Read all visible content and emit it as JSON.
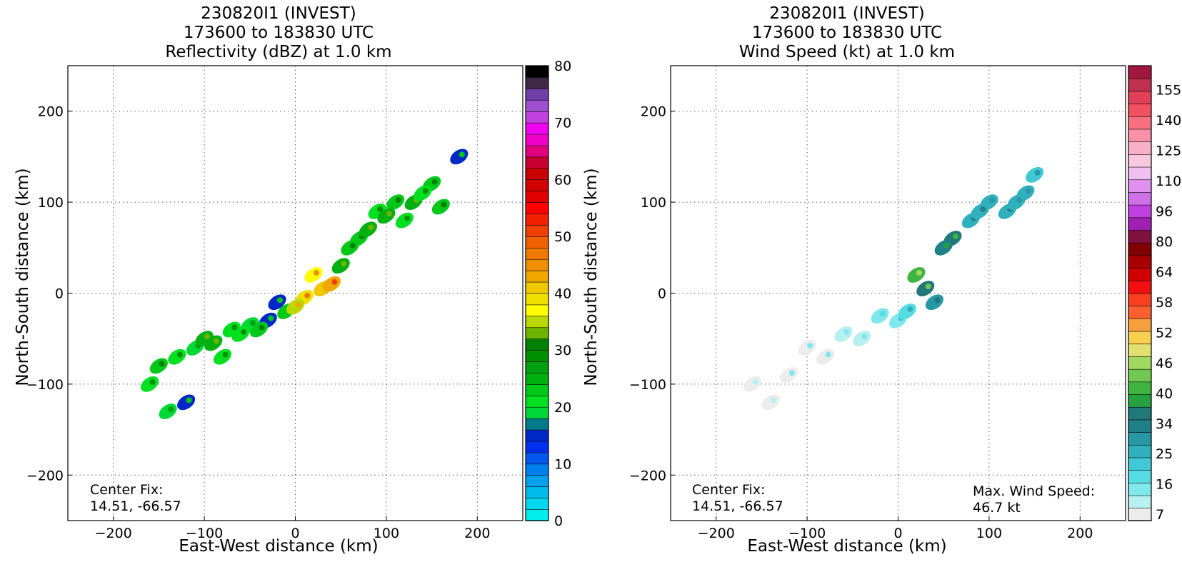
{
  "panels": [
    {
      "title_lines": [
        "230820I1 (INVEST)",
        "173600 to 183830 UTC",
        "Reflectivity (dBZ) at 1.0 km"
      ],
      "center_fix_label": "Center Fix:",
      "center_fix_coords": "14.51, -66.57",
      "note_lines": []
    },
    {
      "title_lines": [
        "230820I1 (INVEST)",
        "173600 to 183830 UTC",
        "Wind Speed (kt) at 1.0 km"
      ],
      "center_fix_label": "Center Fix:",
      "center_fix_coords": "14.51, -66.57",
      "note_lines": [
        "Max. Wind Speed:",
        "46.7 kt"
      ]
    }
  ],
  "chart_data": [
    {
      "type": "heatmap",
      "title": "230820I1 (INVEST) 173600 to 183830 UTC Reflectivity (dBZ) at 1.0 km",
      "xlabel": "East-West distance (km)",
      "ylabel": "North-South distance (km)",
      "xlim": [
        -250,
        250
      ],
      "ylim": [
        -250,
        250
      ],
      "xticks": [
        -200,
        -100,
        0,
        100,
        200
      ],
      "yticks": [
        -200,
        -100,
        0,
        100,
        200
      ],
      "grid": true,
      "colorbar": {
        "label_values": [
          0,
          10,
          20,
          30,
          40,
          50,
          60,
          70,
          80
        ],
        "range": [
          0,
          80
        ],
        "colors": [
          "#00eeee",
          "#00d8ee",
          "#00bcee",
          "#00a0ee",
          "#0080ee",
          "#0058ee",
          "#0030ee",
          "#0028c8",
          "#007a8a",
          "#00d838",
          "#00e020",
          "#00c818",
          "#00b010",
          "#00a010",
          "#009000",
          "#008000",
          "#6cb400",
          "#b8d800",
          "#ffff00",
          "#f0e000",
          "#f0c800",
          "#f0a800",
          "#f09000",
          "#f07800",
          "#f06000",
          "#f04000",
          "#f02000",
          "#ff0000",
          "#e00000",
          "#d00000",
          "#c80000",
          "#c80030",
          "#e00080",
          "#f000c8",
          "#f000f0",
          "#c040e0",
          "#a050d0",
          "#7040a8",
          "#402848",
          "#000000"
        ]
      },
      "series": [
        {
          "name": "",
          "x": [
            -150,
            -130,
            -110,
            -90,
            -70,
            -50,
            -30,
            -10,
            10,
            30,
            50,
            70,
            90,
            110,
            130,
            150,
            -160,
            -120,
            -80,
            -40,
            0,
            40,
            80,
            120,
            160,
            -140,
            -100,
            -60,
            -20,
            20,
            60,
            100,
            140,
            180
          ],
          "y": [
            -80,
            -70,
            -60,
            -55,
            -40,
            -35,
            -30,
            -20,
            -5,
            5,
            30,
            60,
            90,
            100,
            100,
            120,
            -100,
            -120,
            -70,
            -40,
            -15,
            10,
            70,
            80,
            95,
            -130,
            -50,
            -45,
            -10,
            20,
            50,
            85,
            110,
            150
          ],
          "values": [
            22,
            20,
            18,
            25,
            20,
            18,
            15,
            22,
            38,
            40,
            25,
            22,
            20,
            22,
            24,
            22,
            20,
            15,
            20,
            22,
            35,
            42,
            24,
            20,
            22,
            18,
            25,
            20,
            15,
            36,
            22,
            24,
            20,
            15
          ]
        }
      ],
      "center_fix": "14.51, -66.57"
    },
    {
      "type": "heatmap",
      "title": "230820I1 (INVEST) 173600 to 183830 UTC Wind Speed (kt) at 1.0 km",
      "xlabel": "East-West distance (km)",
      "ylabel": "North-South distance (km)",
      "xlim": [
        -250,
        250
      ],
      "ylim": [
        -250,
        250
      ],
      "xticks": [
        -200,
        -100,
        0,
        100,
        200
      ],
      "yticks": [
        -200,
        -100,
        0,
        100,
        200
      ],
      "grid": true,
      "colorbar": {
        "label_values": [
          7,
          16,
          25,
          34,
          40,
          46,
          52,
          58,
          64,
          80,
          96,
          110,
          125,
          140,
          155
        ],
        "colors": [
          "#ececec",
          "#b8f0f0",
          "#80e8ec",
          "#58dce4",
          "#40c8d4",
          "#30b0bc",
          "#2898a4",
          "#208088",
          "#207878",
          "#28a040",
          "#40b440",
          "#70c850",
          "#a0d860",
          "#e0e070",
          "#f8d050",
          "#f8a040",
          "#f86030",
          "#f84020",
          "#f01010",
          "#d00000",
          "#a80000",
          "#800000",
          "#801040",
          "#a020b0",
          "#c040e0",
          "#d070e8",
          "#e090f0",
          "#f0c0f0",
          "#f8c8e0",
          "#f8b0c8",
          "#f890a8",
          "#f87080",
          "#f05060",
          "#e04058",
          "#c03050",
          "#a01840"
        ]
      },
      "series": [
        {
          "name": "",
          "x": [
            -160,
            -120,
            -80,
            -40,
            0,
            20,
            30,
            40,
            60,
            80,
            100,
            120,
            140,
            150,
            -140,
            -100,
            -60,
            -20,
            10,
            50,
            90,
            130
          ],
          "y": [
            -100,
            -90,
            -70,
            -50,
            -30,
            20,
            5,
            -10,
            60,
            80,
            100,
            90,
            110,
            130,
            -120,
            -60,
            -45,
            -25,
            -20,
            50,
            90,
            100
          ],
          "values": [
            8,
            9,
            10,
            12,
            18,
            42,
            38,
            30,
            36,
            28,
            26,
            28,
            27,
            24,
            8,
            10,
            12,
            16,
            22,
            34,
            28,
            26
          ]
        }
      ],
      "center_fix": "14.51, -66.57",
      "max_wind_speed": "46.7 kt"
    }
  ]
}
